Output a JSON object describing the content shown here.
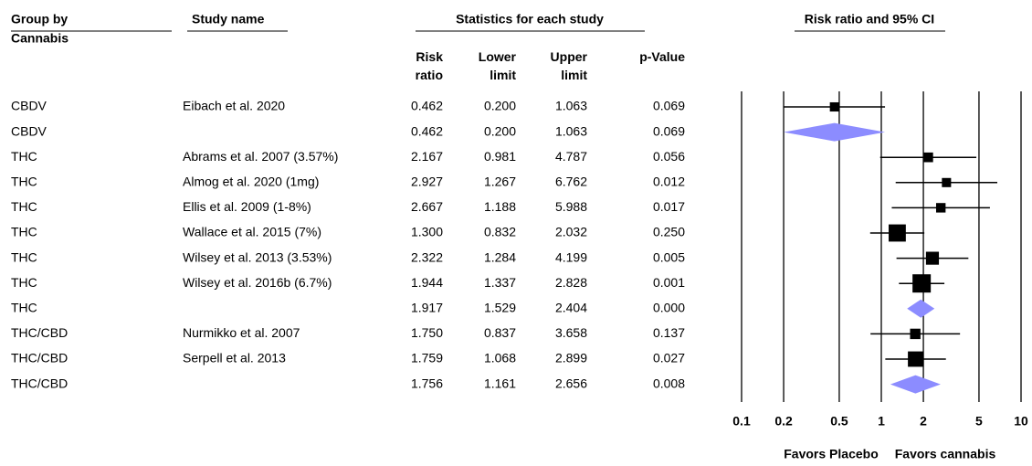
{
  "chart_data": {
    "type": "forest",
    "title": "Risk ratio and 95% CI",
    "group_header": "Group by",
    "group_subheader": "Cannabis",
    "study_header": "Study name",
    "stats_header": "Statistics for each study",
    "groups": [
      "CBDV",
      "CBDV",
      "THC",
      "THC",
      "THC",
      "THC",
      "THC",
      "THC",
      "THC",
      "THC/CBD",
      "THC/CBD",
      "THC/CBD"
    ],
    "studies": [
      "Eibach et al. 2020",
      null,
      "Abrams et al. 2007 (3.57%)",
      "Almog et al. 2020 (1mg)",
      "Ellis et al. 2009 (1-8%)",
      "Wallace et al. 2015 (7%)",
      "Wilsey et al. 2013 (3.53%)",
      "Wilsey et al. 2016b  (6.7%)",
      null,
      "Nurmikko et al. 2007",
      "Serpell et al. 2013",
      null
    ],
    "series": [
      {
        "name": "Risk ratio",
        "values": [
          0.462,
          0.462,
          2.167,
          2.927,
          2.667,
          1.3,
          2.322,
          1.944,
          1.917,
          1.75,
          1.759,
          1.756
        ],
        "value_labels": [
          "0.462",
          "0.462",
          "2.167",
          "2.927",
          "2.667",
          "1.300",
          "2.322",
          "1.944",
          "1.917",
          "1.750",
          "1.759",
          "1.756"
        ]
      },
      {
        "name": "Lower limit",
        "values": [
          0.2,
          0.2,
          0.981,
          1.267,
          1.188,
          0.832,
          1.284,
          1.337,
          1.529,
          0.837,
          1.068,
          1.161
        ],
        "value_labels": [
          "0.200",
          "0.200",
          "0.981",
          "1.267",
          "1.188",
          "0.832",
          "1.284",
          "1.337",
          "1.529",
          "0.837",
          "1.068",
          "1.161"
        ]
      },
      {
        "name": "Upper limit",
        "values": [
          1.063,
          1.063,
          4.787,
          6.762,
          5.988,
          2.032,
          4.199,
          2.828,
          2.404,
          3.658,
          2.899,
          2.656
        ]
      },
      {
        "name": "p-Value",
        "values": [
          0.069,
          0.069,
          0.056,
          0.012,
          0.017,
          0.25,
          0.005,
          0.001,
          0,
          0.137,
          0.027,
          0.008
        ],
        "value_labels": [
          "0.069",
          "0.069",
          "0.056",
          "0.012",
          "0.017",
          "0.250",
          "0.005",
          "0.001",
          "0.000",
          "0.137",
          "0.027",
          "0.008"
        ]
      }
    ],
    "log_x": true,
    "xlim": [
      0.1,
      10
    ],
    "xticks": [
      0.1,
      0.2,
      0.5,
      1,
      2,
      5,
      10
    ],
    "grid": true,
    "marker_color": "#000000",
    "summary_color": "#8c8cff",
    "left_label": "Favors Placebo",
    "right_label": "Favors cannabis"
  }
}
